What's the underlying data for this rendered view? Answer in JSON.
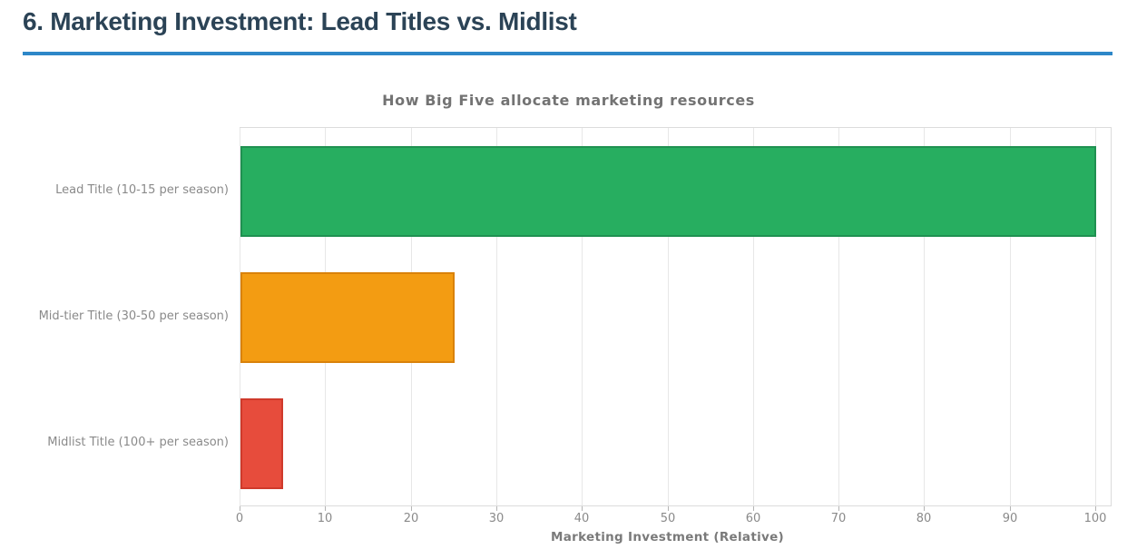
{
  "page": {
    "heading": "6. Marketing Investment: Lead Titles vs. Midlist"
  },
  "colors": {
    "heading_text": "#2b4356",
    "rule_blue": "#2d87c8",
    "grid_gray": "#e7e7e7",
    "label_gray": "#8a8a8a"
  },
  "chart_data": {
    "type": "bar",
    "orientation": "horizontal",
    "title": "How Big Five allocate marketing resources",
    "xlabel": "Marketing Investment (Relative)",
    "ylabel": "",
    "categories": [
      "Lead Title (10-15 per season)",
      "Mid-tier Title (30-50 per season)",
      "Midlist Title (100+ per season)"
    ],
    "values": [
      100,
      25,
      5
    ],
    "bar_colors": [
      "#27ae60",
      "#f39c12",
      "#e74c3c"
    ],
    "bar_border_colors": [
      "#1f9151",
      "#d9820b",
      "#cf3a2b"
    ],
    "xlim": [
      0,
      100
    ],
    "xticks": [
      0,
      10,
      20,
      30,
      40,
      50,
      60,
      70,
      80,
      90,
      100
    ],
    "grid": "vertical",
    "legend": "none"
  }
}
